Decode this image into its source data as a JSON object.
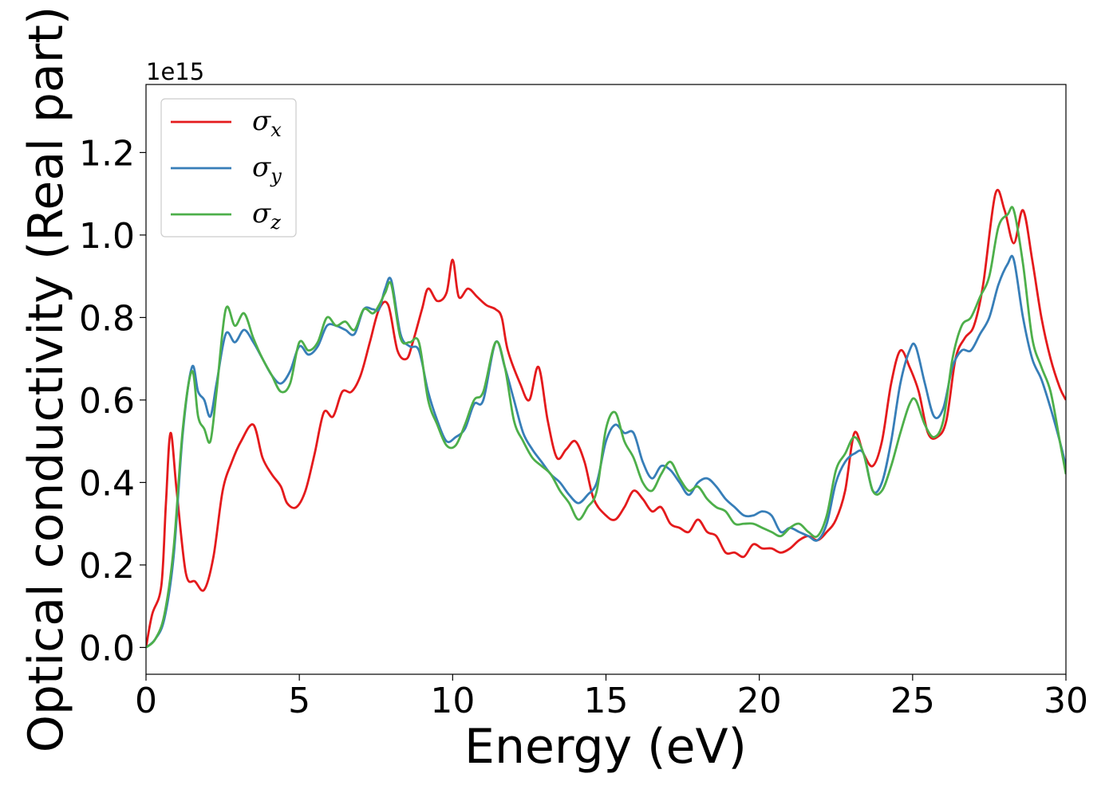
{
  "chart_data": {
    "type": "line",
    "xlabel": "Energy (eV)",
    "ylabel": "Optical conductivity (Real part)",
    "offset_text": "1e15",
    "xlim": [
      0,
      30
    ],
    "ylim": [
      -0.065,
      1.365
    ],
    "x_ticks": [
      0,
      5,
      10,
      15,
      20,
      25,
      30
    ],
    "x_tick_labels": [
      "0",
      "5",
      "10",
      "15",
      "20",
      "25",
      "30"
    ],
    "y_ticks": [
      0.0,
      0.2,
      0.4,
      0.6,
      0.8,
      1.0,
      1.2
    ],
    "y_tick_labels": [
      "0.0",
      "0.2",
      "0.4",
      "0.6",
      "0.8",
      "1.0",
      "1.2"
    ],
    "grid": false,
    "legend_position": "upper-left",
    "series": [
      {
        "name": "σx",
        "symbol": "σ",
        "subscript": "x",
        "color": "#e41a1c",
        "x": [
          0,
          0.2,
          0.5,
          0.65,
          0.8,
          1.0,
          1.3,
          1.6,
          1.9,
          2.2,
          2.5,
          2.8,
          3.1,
          3.5,
          3.8,
          4.1,
          4.4,
          4.6,
          4.9,
          5.2,
          5.5,
          5.8,
          6.1,
          6.4,
          6.7,
          7.0,
          7.3,
          7.6,
          7.9,
          8.2,
          8.5,
          8.7,
          9.0,
          9.2,
          9.5,
          9.8,
          10.0,
          10.2,
          10.5,
          10.8,
          11.1,
          11.4,
          11.6,
          11.8,
          12.2,
          12.5,
          12.8,
          13.1,
          13.4,
          13.7,
          14.0,
          14.3,
          14.6,
          15.0,
          15.3,
          15.6,
          15.9,
          16.2,
          16.5,
          16.8,
          17.1,
          17.4,
          17.7,
          18.0,
          18.3,
          18.6,
          18.9,
          19.2,
          19.5,
          19.8,
          20.1,
          20.4,
          20.7,
          21.0,
          21.3,
          21.6,
          21.9,
          22.2,
          22.5,
          22.8,
          23.1,
          23.4,
          23.7,
          24.0,
          24.3,
          24.6,
          24.9,
          25.2,
          25.5,
          25.8,
          26.1,
          26.4,
          26.7,
          27.0,
          27.3,
          27.7,
          28.0,
          28.3,
          28.6,
          28.9,
          29.2,
          29.5,
          29.8,
          30.0
        ],
        "y": [
          0.0,
          0.08,
          0.15,
          0.35,
          0.52,
          0.38,
          0.18,
          0.16,
          0.14,
          0.22,
          0.38,
          0.45,
          0.5,
          0.54,
          0.46,
          0.42,
          0.39,
          0.35,
          0.34,
          0.38,
          0.47,
          0.57,
          0.56,
          0.62,
          0.62,
          0.66,
          0.74,
          0.82,
          0.83,
          0.72,
          0.7,
          0.74,
          0.82,
          0.87,
          0.84,
          0.86,
          0.94,
          0.85,
          0.87,
          0.85,
          0.83,
          0.82,
          0.8,
          0.72,
          0.64,
          0.6,
          0.68,
          0.55,
          0.46,
          0.48,
          0.5,
          0.45,
          0.36,
          0.32,
          0.31,
          0.34,
          0.38,
          0.36,
          0.33,
          0.34,
          0.3,
          0.29,
          0.28,
          0.31,
          0.28,
          0.27,
          0.23,
          0.23,
          0.22,
          0.25,
          0.24,
          0.24,
          0.23,
          0.24,
          0.26,
          0.27,
          0.26,
          0.28,
          0.31,
          0.38,
          0.52,
          0.47,
          0.44,
          0.5,
          0.64,
          0.72,
          0.68,
          0.62,
          0.52,
          0.51,
          0.55,
          0.7,
          0.75,
          0.78,
          0.88,
          1.1,
          1.06,
          0.98,
          1.06,
          0.94,
          0.8,
          0.7,
          0.63,
          0.6
        ]
      },
      {
        "name": "σy",
        "symbol": "σ",
        "subscript": "y",
        "color": "#377eb8",
        "x": [
          0,
          0.3,
          0.6,
          0.9,
          1.2,
          1.5,
          1.7,
          1.9,
          2.1,
          2.3,
          2.6,
          2.9,
          3.2,
          3.5,
          3.8,
          4.1,
          4.4,
          4.7,
          5.0,
          5.3,
          5.6,
          5.9,
          6.2,
          6.5,
          6.8,
          7.1,
          7.4,
          7.6,
          7.8,
          8.0,
          8.3,
          8.6,
          8.9,
          9.2,
          9.5,
          9.8,
          10.1,
          10.4,
          10.7,
          11.0,
          11.4,
          11.7,
          12.0,
          12.3,
          12.6,
          12.9,
          13.2,
          13.5,
          13.8,
          14.1,
          14.4,
          14.7,
          15.0,
          15.3,
          15.6,
          15.9,
          16.2,
          16.5,
          16.8,
          17.1,
          17.4,
          17.7,
          18.0,
          18.3,
          18.6,
          18.9,
          19.2,
          19.5,
          19.8,
          20.1,
          20.4,
          20.7,
          21.0,
          21.3,
          21.6,
          21.9,
          22.2,
          22.5,
          22.8,
          23.1,
          23.4,
          23.7,
          24.0,
          24.3,
          24.6,
          24.9,
          25.1,
          25.4,
          25.7,
          26.0,
          26.3,
          26.6,
          26.9,
          27.2,
          27.5,
          27.8,
          28.1,
          28.3,
          28.6,
          28.9,
          29.2,
          29.5,
          29.8,
          30.0
        ],
        "y": [
          0.0,
          0.02,
          0.07,
          0.22,
          0.52,
          0.68,
          0.62,
          0.6,
          0.56,
          0.64,
          0.76,
          0.74,
          0.77,
          0.74,
          0.7,
          0.66,
          0.64,
          0.67,
          0.73,
          0.71,
          0.73,
          0.78,
          0.78,
          0.77,
          0.76,
          0.82,
          0.82,
          0.82,
          0.87,
          0.89,
          0.76,
          0.73,
          0.72,
          0.62,
          0.55,
          0.5,
          0.51,
          0.53,
          0.59,
          0.6,
          0.74,
          0.68,
          0.6,
          0.52,
          0.48,
          0.45,
          0.42,
          0.4,
          0.37,
          0.35,
          0.37,
          0.4,
          0.5,
          0.54,
          0.52,
          0.52,
          0.45,
          0.41,
          0.44,
          0.43,
          0.4,
          0.37,
          0.4,
          0.41,
          0.39,
          0.36,
          0.34,
          0.32,
          0.32,
          0.33,
          0.32,
          0.28,
          0.29,
          0.28,
          0.27,
          0.26,
          0.3,
          0.4,
          0.45,
          0.47,
          0.47,
          0.38,
          0.4,
          0.5,
          0.64,
          0.72,
          0.73,
          0.64,
          0.56,
          0.58,
          0.68,
          0.72,
          0.72,
          0.76,
          0.8,
          0.88,
          0.93,
          0.94,
          0.8,
          0.7,
          0.65,
          0.58,
          0.5,
          0.44
        ]
      },
      {
        "name": "σz",
        "symbol": "σ",
        "subscript": "z",
        "color": "#4daf4a",
        "x": [
          0,
          0.3,
          0.6,
          0.9,
          1.2,
          1.5,
          1.7,
          1.9,
          2.1,
          2.3,
          2.6,
          2.9,
          3.2,
          3.5,
          3.8,
          4.1,
          4.4,
          4.7,
          5.0,
          5.3,
          5.6,
          5.9,
          6.2,
          6.5,
          6.8,
          7.1,
          7.4,
          7.6,
          7.8,
          8.0,
          8.3,
          8.6,
          8.9,
          9.2,
          9.5,
          9.8,
          10.1,
          10.4,
          10.7,
          11.0,
          11.4,
          11.7,
          12.0,
          12.3,
          12.6,
          12.9,
          13.2,
          13.5,
          13.8,
          14.1,
          14.4,
          14.7,
          15.0,
          15.3,
          15.6,
          15.9,
          16.2,
          16.5,
          16.8,
          17.1,
          17.4,
          17.7,
          18.0,
          18.3,
          18.6,
          18.9,
          19.2,
          19.5,
          19.8,
          20.1,
          20.4,
          20.7,
          21.0,
          21.3,
          21.6,
          21.9,
          22.2,
          22.5,
          22.8,
          23.1,
          23.4,
          23.7,
          24.0,
          24.3,
          24.6,
          24.9,
          25.1,
          25.4,
          25.7,
          26.0,
          26.3,
          26.6,
          26.9,
          27.2,
          27.5,
          27.8,
          28.1,
          28.3,
          28.6,
          28.9,
          29.2,
          29.5,
          29.8,
          30.0
        ],
        "y": [
          0.0,
          0.02,
          0.08,
          0.24,
          0.53,
          0.67,
          0.56,
          0.53,
          0.5,
          0.62,
          0.82,
          0.78,
          0.81,
          0.75,
          0.7,
          0.66,
          0.62,
          0.64,
          0.74,
          0.72,
          0.74,
          0.8,
          0.78,
          0.79,
          0.77,
          0.82,
          0.81,
          0.83,
          0.86,
          0.88,
          0.75,
          0.74,
          0.74,
          0.6,
          0.54,
          0.49,
          0.49,
          0.54,
          0.6,
          0.62,
          0.74,
          0.68,
          0.55,
          0.5,
          0.46,
          0.44,
          0.42,
          0.38,
          0.35,
          0.31,
          0.34,
          0.38,
          0.53,
          0.57,
          0.5,
          0.46,
          0.4,
          0.38,
          0.42,
          0.45,
          0.41,
          0.38,
          0.39,
          0.36,
          0.34,
          0.33,
          0.3,
          0.3,
          0.3,
          0.29,
          0.28,
          0.27,
          0.29,
          0.3,
          0.28,
          0.27,
          0.32,
          0.43,
          0.47,
          0.51,
          0.47,
          0.38,
          0.38,
          0.44,
          0.52,
          0.59,
          0.6,
          0.54,
          0.51,
          0.55,
          0.7,
          0.78,
          0.8,
          0.85,
          0.9,
          1.02,
          1.05,
          1.06,
          0.93,
          0.75,
          0.68,
          0.62,
          0.5,
          0.42
        ]
      }
    ]
  }
}
